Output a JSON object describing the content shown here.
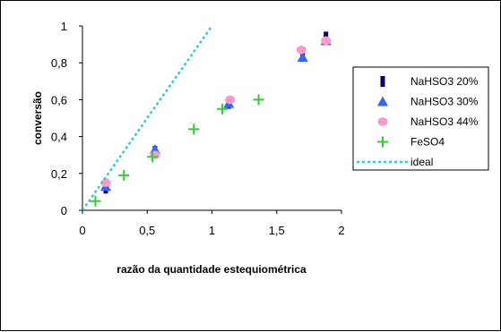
{
  "chart_data": {
    "type": "scatter",
    "title": "",
    "xlabel": "razão da quantidade estequiométrica",
    "ylabel": "conversão",
    "xlim": [
      0,
      2
    ],
    "ylim": [
      0,
      1
    ],
    "x_ticks": [
      "0",
      "0,5",
      "1",
      "1,5",
      "2"
    ],
    "y_ticks": [
      "0",
      "0,2",
      "0,4",
      "0,6",
      "0,8",
      "1"
    ],
    "x_tick_values": [
      0,
      0.5,
      1,
      1.5,
      2
    ],
    "y_tick_values": [
      0,
      0.2,
      0.4,
      0.6,
      0.8,
      1
    ],
    "grid": false,
    "legend_position": "right",
    "series": [
      {
        "name": "NaHSO3 20%",
        "marker": "bar",
        "color": "#000080",
        "points": [
          [
            0.18,
            0.12
          ],
          [
            0.56,
            0.32
          ],
          [
            1.13,
            0.58
          ],
          [
            1.7,
            0.84
          ],
          [
            1.88,
            0.94
          ]
        ]
      },
      {
        "name": "NaHSO3 30%",
        "marker": "triangle",
        "color": "#3366ff",
        "points": [
          [
            0.18,
            0.13
          ],
          [
            0.56,
            0.33
          ],
          [
            1.13,
            0.58
          ],
          [
            1.7,
            0.83
          ],
          [
            1.88,
            0.92
          ]
        ]
      },
      {
        "name": "NaHSO3 44%",
        "marker": "circle",
        "color": "#ff99cc",
        "points": [
          [
            0.18,
            0.15
          ],
          [
            0.56,
            0.3
          ],
          [
            1.14,
            0.6
          ],
          [
            1.69,
            0.87
          ],
          [
            1.88,
            0.92
          ]
        ]
      },
      {
        "name": "FeSO4",
        "marker": "plus",
        "color": "#33cc33",
        "points": [
          [
            0.1,
            0.05
          ],
          [
            0.32,
            0.19
          ],
          [
            0.54,
            0.29
          ],
          [
            0.86,
            0.44
          ],
          [
            1.08,
            0.55
          ],
          [
            1.36,
            0.6
          ]
        ]
      },
      {
        "name": "ideal",
        "marker": "line",
        "color": "#33cccc",
        "points": [
          [
            0,
            0
          ],
          [
            1,
            1
          ]
        ]
      }
    ]
  }
}
